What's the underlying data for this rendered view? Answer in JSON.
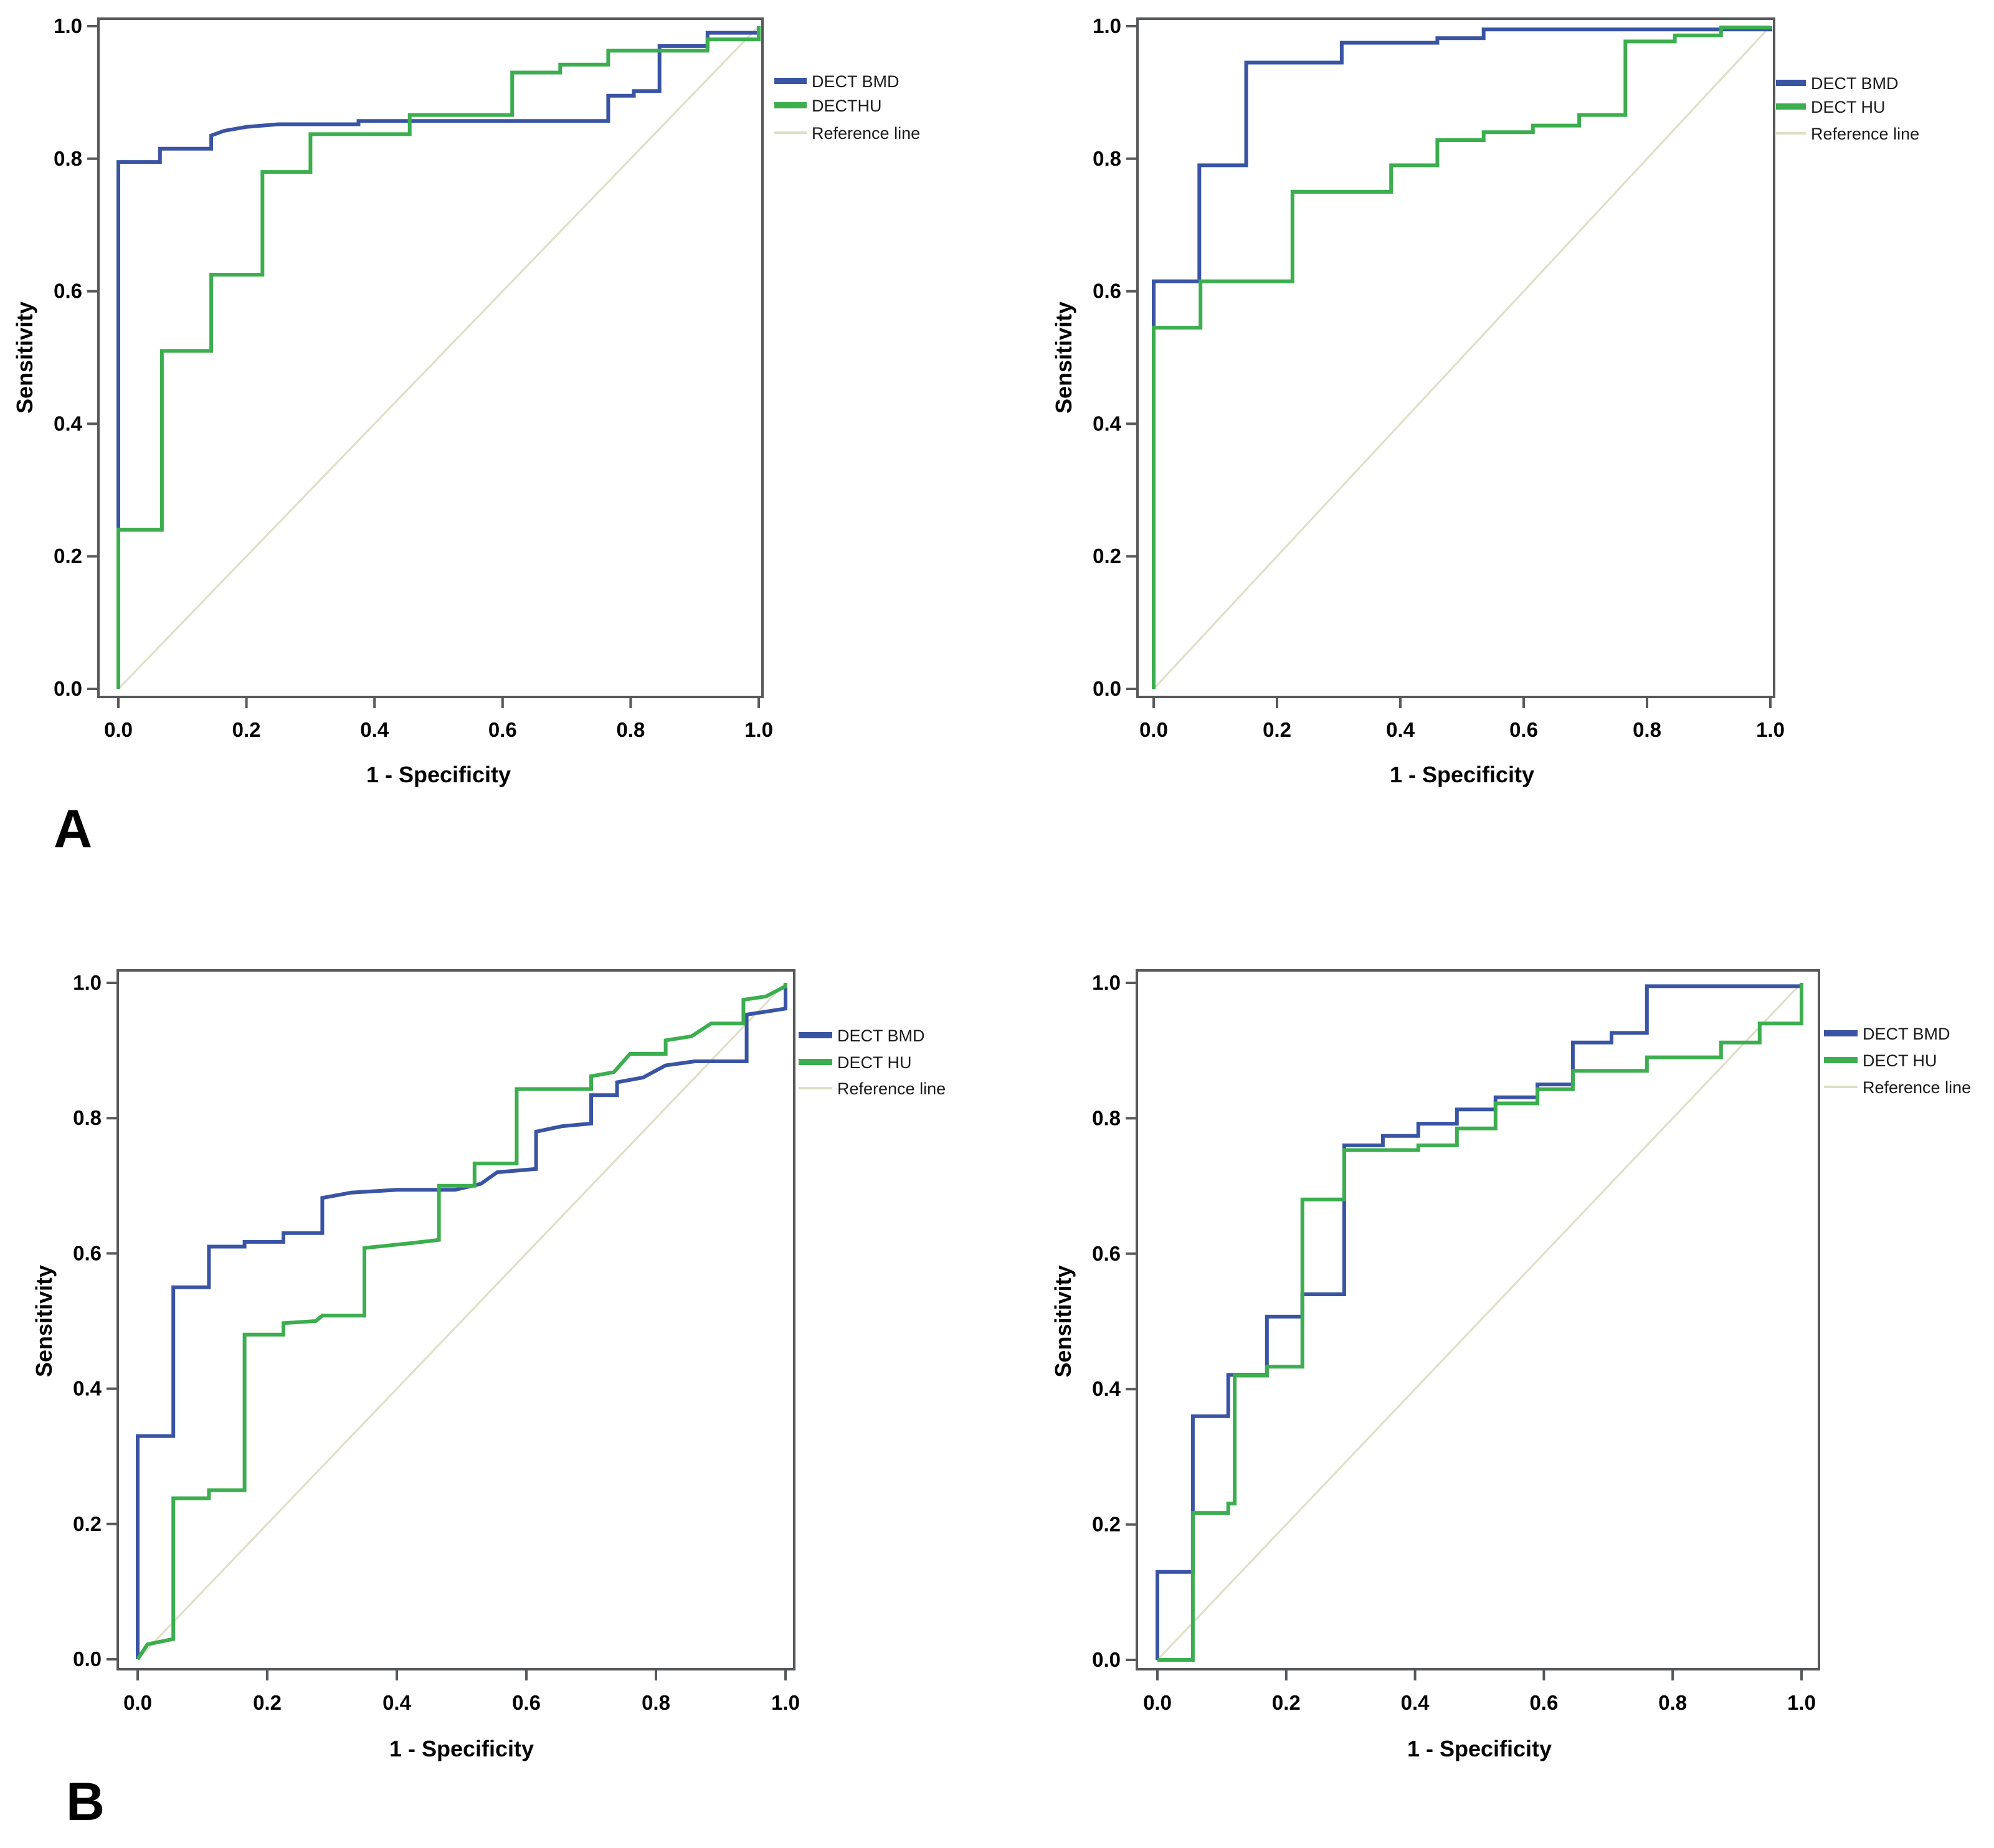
{
  "panels": {
    "a": "A",
    "b": "B"
  },
  "style": {
    "background": "#ffffff",
    "frame_color": "#57585a",
    "bmd_color": "#3a54a4",
    "hu_color": "#3cae4f",
    "reference_color": "#dedec4",
    "text_color": "#000000"
  },
  "chart_data": [
    {
      "id": "a_left",
      "panel": "A",
      "type": "line",
      "subtype": "roc_step_curve",
      "title": "",
      "xlabel": "1 - Specificity",
      "ylabel": "Sensitivity",
      "xlim": [
        0,
        1
      ],
      "ylim": [
        0,
        1
      ],
      "grid": false,
      "legend_position": "right",
      "tick_values": [
        0,
        0.2,
        0.4,
        0.6,
        0.8,
        1
      ],
      "tick_labels": [
        "0.0",
        "0.2",
        "0.4",
        "0.6",
        "0.8",
        "1.0"
      ],
      "series": [
        {
          "name": "DECT BMD",
          "color": "#3a54a4",
          "points": [
            [
              0,
              0
            ],
            [
              0,
              0.795
            ],
            [
              0.065,
              0.795
            ],
            [
              0.065,
              0.815
            ],
            [
              0.145,
              0.815
            ],
            [
              0.145,
              0.835
            ],
            [
              0.165,
              0.842
            ],
            [
              0.2,
              0.848
            ],
            [
              0.25,
              0.852
            ],
            [
              0.375,
              0.852
            ],
            [
              0.375,
              0.857
            ],
            [
              0.765,
              0.857
            ],
            [
              0.765,
              0.895
            ],
            [
              0.805,
              0.895
            ],
            [
              0.805,
              0.902
            ],
            [
              0.845,
              0.902
            ],
            [
              0.845,
              0.97
            ],
            [
              0.92,
              0.97
            ],
            [
              0.92,
              0.99
            ],
            [
              1,
              0.99
            ],
            [
              1,
              1
            ]
          ]
        },
        {
          "name": "DECTHU",
          "color": "#3cae4f",
          "points": [
            [
              0,
              0
            ],
            [
              0,
              0.24
            ],
            [
              0.068,
              0.24
            ],
            [
              0.068,
              0.51
            ],
            [
              0.145,
              0.51
            ],
            [
              0.145,
              0.625
            ],
            [
              0.225,
              0.625
            ],
            [
              0.225,
              0.78
            ],
            [
              0.3,
              0.78
            ],
            [
              0.3,
              0.837
            ],
            [
              0.455,
              0.837
            ],
            [
              0.455,
              0.866
            ],
            [
              0.615,
              0.866
            ],
            [
              0.615,
              0.93
            ],
            [
              0.69,
              0.93
            ],
            [
              0.69,
              0.942
            ],
            [
              0.765,
              0.942
            ],
            [
              0.765,
              0.963
            ],
            [
              0.92,
              0.963
            ],
            [
              0.92,
              0.98
            ],
            [
              1,
              0.98
            ],
            [
              1,
              1
            ]
          ]
        },
        {
          "name": "Reference line",
          "color": "#dedec4",
          "points": [
            [
              0,
              0
            ],
            [
              1,
              1
            ]
          ]
        }
      ]
    },
    {
      "id": "a_right",
      "panel": "A",
      "type": "line",
      "subtype": "roc_step_curve",
      "title": "",
      "xlabel": "1 - Specificity",
      "ylabel": "Sensitivity",
      "xlim": [
        0,
        1
      ],
      "ylim": [
        0,
        1
      ],
      "grid": false,
      "legend_position": "right",
      "tick_values": [
        0,
        0.2,
        0.4,
        0.6,
        0.8,
        1
      ],
      "tick_labels": [
        "0.0",
        "0.2",
        "0.4",
        "0.6",
        "0.8",
        "1.0"
      ],
      "series": [
        {
          "name": "DECT BMD",
          "color": "#3a54a4",
          "points": [
            [
              0,
              0
            ],
            [
              0,
              0.615
            ],
            [
              0.074,
              0.615
            ],
            [
              0.074,
              0.79
            ],
            [
              0.15,
              0.79
            ],
            [
              0.15,
              0.945
            ],
            [
              0.305,
              0.945
            ],
            [
              0.305,
              0.975
            ],
            [
              0.46,
              0.975
            ],
            [
              0.46,
              0.982
            ],
            [
              0.535,
              0.982
            ],
            [
              0.535,
              0.995
            ],
            [
              1,
              0.995
            ],
            [
              1,
              1
            ]
          ]
        },
        {
          "name": "DECT HU",
          "color": "#3cae4f",
          "points": [
            [
              0,
              0
            ],
            [
              0,
              0.545
            ],
            [
              0.076,
              0.545
            ],
            [
              0.076,
              0.615
            ],
            [
              0.225,
              0.615
            ],
            [
              0.225,
              0.75
            ],
            [
              0.385,
              0.75
            ],
            [
              0.385,
              0.79
            ],
            [
              0.46,
              0.79
            ],
            [
              0.46,
              0.828
            ],
            [
              0.535,
              0.828
            ],
            [
              0.535,
              0.84
            ],
            [
              0.615,
              0.84
            ],
            [
              0.615,
              0.85
            ],
            [
              0.69,
              0.85
            ],
            [
              0.69,
              0.866
            ],
            [
              0.765,
              0.866
            ],
            [
              0.765,
              0.977
            ],
            [
              0.845,
              0.977
            ],
            [
              0.845,
              0.986
            ],
            [
              0.92,
              0.986
            ],
            [
              0.92,
              0.998
            ],
            [
              1,
              0.998
            ],
            [
              1,
              1
            ]
          ]
        },
        {
          "name": "Reference line",
          "color": "#dedec4",
          "points": [
            [
              0,
              0
            ],
            [
              1,
              1
            ]
          ]
        }
      ]
    },
    {
      "id": "b_left",
      "panel": "B",
      "type": "line",
      "subtype": "roc_step_curve",
      "title": "",
      "xlabel": "1 - Specificity",
      "ylabel": "Sensitivity",
      "xlim": [
        0,
        1
      ],
      "ylim": [
        0,
        1
      ],
      "grid": false,
      "legend_position": "right",
      "tick_values": [
        0,
        0.2,
        0.4,
        0.6,
        0.8,
        1
      ],
      "tick_labels": [
        "0.0",
        "0.2",
        "0.4",
        "0.6",
        "0.8",
        "1.0"
      ],
      "series": [
        {
          "name": "DECT BMD",
          "color": "#3a54a4",
          "points": [
            [
              0,
              0
            ],
            [
              0,
              0.33
            ],
            [
              0.055,
              0.33
            ],
            [
              0.055,
              0.55
            ],
            [
              0.11,
              0.55
            ],
            [
              0.11,
              0.61
            ],
            [
              0.165,
              0.61
            ],
            [
              0.165,
              0.617
            ],
            [
              0.225,
              0.617
            ],
            [
              0.225,
              0.63
            ],
            [
              0.285,
              0.63
            ],
            [
              0.285,
              0.682
            ],
            [
              0.33,
              0.69
            ],
            [
              0.4,
              0.694
            ],
            [
              0.49,
              0.694
            ],
            [
              0.53,
              0.703
            ],
            [
              0.555,
              0.72
            ],
            [
              0.615,
              0.725
            ],
            [
              0.615,
              0.78
            ],
            [
              0.655,
              0.788
            ],
            [
              0.7,
              0.792
            ],
            [
              0.7,
              0.834
            ],
            [
              0.74,
              0.834
            ],
            [
              0.74,
              0.853
            ],
            [
              0.78,
              0.86
            ],
            [
              0.815,
              0.878
            ],
            [
              0.86,
              0.884
            ],
            [
              0.94,
              0.884
            ],
            [
              0.94,
              0.953
            ],
            [
              1,
              0.962
            ],
            [
              1,
              1
            ]
          ]
        },
        {
          "name": "DECT HU",
          "color": "#3cae4f",
          "points": [
            [
              0,
              0
            ],
            [
              0.015,
              0.022
            ],
            [
              0.055,
              0.03
            ],
            [
              0.055,
              0.238
            ],
            [
              0.11,
              0.238
            ],
            [
              0.11,
              0.25
            ],
            [
              0.165,
              0.25
            ],
            [
              0.165,
              0.48
            ],
            [
              0.225,
              0.48
            ],
            [
              0.225,
              0.497
            ],
            [
              0.275,
              0.5
            ],
            [
              0.285,
              0.508
            ],
            [
              0.35,
              0.508
            ],
            [
              0.35,
              0.608
            ],
            [
              0.42,
              0.615
            ],
            [
              0.465,
              0.62
            ],
            [
              0.465,
              0.7
            ],
            [
              0.52,
              0.7
            ],
            [
              0.52,
              0.733
            ],
            [
              0.585,
              0.733
            ],
            [
              0.585,
              0.843
            ],
            [
              0.7,
              0.843
            ],
            [
              0.7,
              0.862
            ],
            [
              0.735,
              0.868
            ],
            [
              0.76,
              0.895
            ],
            [
              0.815,
              0.895
            ],
            [
              0.815,
              0.915
            ],
            [
              0.855,
              0.921
            ],
            [
              0.885,
              0.94
            ],
            [
              0.935,
              0.94
            ],
            [
              0.935,
              0.975
            ],
            [
              0.97,
              0.98
            ],
            [
              1,
              0.995
            ],
            [
              1,
              1
            ]
          ]
        },
        {
          "name": "Reference line",
          "color": "#dedec4",
          "points": [
            [
              0,
              0
            ],
            [
              1,
              1
            ]
          ]
        }
      ]
    },
    {
      "id": "b_right",
      "panel": "B",
      "type": "line",
      "subtype": "roc_step_curve",
      "title": "",
      "xlabel": "1 - Specificity",
      "ylabel": "Sensitivity",
      "xlim": [
        0,
        1
      ],
      "ylim": [
        0,
        1
      ],
      "grid": false,
      "legend_position": "right",
      "tick_values": [
        0,
        0.2,
        0.4,
        0.6,
        0.8,
        1
      ],
      "tick_labels": [
        "0.0",
        "0.2",
        "0.4",
        "0.6",
        "0.8",
        "1.0"
      ],
      "series": [
        {
          "name": "DECT BMD",
          "color": "#3a54a4",
          "points": [
            [
              0,
              0
            ],
            [
              0,
              0.13
            ],
            [
              0.055,
              0.13
            ],
            [
              0.055,
              0.36
            ],
            [
              0.11,
              0.36
            ],
            [
              0.11,
              0.421
            ],
            [
              0.17,
              0.421
            ],
            [
              0.17,
              0.507
            ],
            [
              0.225,
              0.507
            ],
            [
              0.225,
              0.54
            ],
            [
              0.29,
              0.54
            ],
            [
              0.29,
              0.76
            ],
            [
              0.35,
              0.76
            ],
            [
              0.35,
              0.774
            ],
            [
              0.405,
              0.774
            ],
            [
              0.405,
              0.792
            ],
            [
              0.465,
              0.792
            ],
            [
              0.465,
              0.813
            ],
            [
              0.525,
              0.813
            ],
            [
              0.525,
              0.831
            ],
            [
              0.59,
              0.831
            ],
            [
              0.59,
              0.85
            ],
            [
              0.645,
              0.85
            ],
            [
              0.645,
              0.912
            ],
            [
              0.705,
              0.912
            ],
            [
              0.705,
              0.926
            ],
            [
              0.76,
              0.926
            ],
            [
              0.76,
              0.995
            ],
            [
              1,
              0.995
            ],
            [
              1,
              1
            ]
          ]
        },
        {
          "name": "DECT HU",
          "color": "#3cae4f",
          "points": [
            [
              0,
              0
            ],
            [
              0.055,
              0
            ],
            [
              0.055,
              0.217
            ],
            [
              0.11,
              0.217
            ],
            [
              0.11,
              0.231
            ],
            [
              0.12,
              0.231
            ],
            [
              0.12,
              0.42
            ],
            [
              0.17,
              0.42
            ],
            [
              0.17,
              0.433
            ],
            [
              0.225,
              0.433
            ],
            [
              0.225,
              0.68
            ],
            [
              0.29,
              0.68
            ],
            [
              0.29,
              0.753
            ],
            [
              0.405,
              0.753
            ],
            [
              0.405,
              0.76
            ],
            [
              0.465,
              0.76
            ],
            [
              0.465,
              0.785
            ],
            [
              0.525,
              0.785
            ],
            [
              0.525,
              0.822
            ],
            [
              0.59,
              0.822
            ],
            [
              0.59,
              0.843
            ],
            [
              0.645,
              0.843
            ],
            [
              0.645,
              0.87
            ],
            [
              0.76,
              0.87
            ],
            [
              0.76,
              0.89
            ],
            [
              0.875,
              0.89
            ],
            [
              0.875,
              0.912
            ],
            [
              0.935,
              0.912
            ],
            [
              0.935,
              0.94
            ],
            [
              1,
              0.94
            ],
            [
              1,
              1
            ]
          ]
        },
        {
          "name": "Reference line",
          "color": "#dedec4",
          "points": [
            [
              0,
              0
            ],
            [
              1,
              1
            ]
          ]
        }
      ]
    }
  ]
}
